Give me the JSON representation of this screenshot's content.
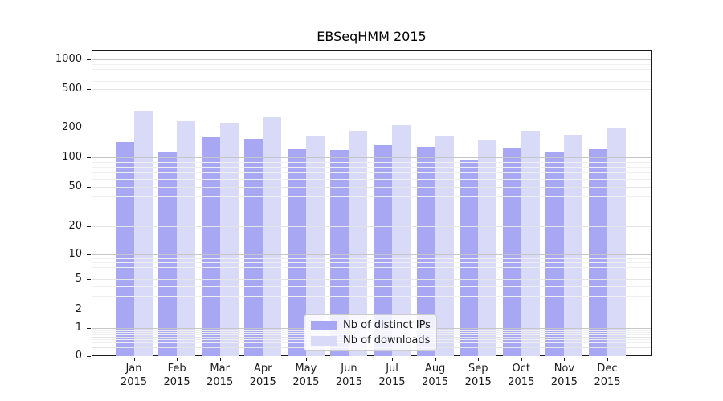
{
  "title": "EBSeqHMM 2015",
  "chart_data": {
    "type": "bar",
    "title": "EBSeqHMM 2015",
    "categories": [
      "Jan",
      "Feb",
      "Mar",
      "Apr",
      "May",
      "Jun",
      "Jul",
      "Aug",
      "Sep",
      "Oct",
      "Nov",
      "Dec"
    ],
    "year": "2015",
    "series": [
      {
        "name": "Nb of distinct IPs",
        "color": "#a7a7f3",
        "values": [
          143,
          114,
          161,
          155,
          121,
          119,
          133,
          128,
          93,
          125,
          115,
          121
        ]
      },
      {
        "name": "Nb of downloads",
        "color": "#d9d9f8",
        "values": [
          293,
          234,
          226,
          258,
          167,
          186,
          211,
          165,
          150,
          188,
          170,
          200
        ]
      }
    ],
    "xlabel": "",
    "ylabel": "",
    "y_axis": {
      "scale": "log-like",
      "tick_values": [
        1000,
        500,
        200,
        100,
        50,
        20,
        10,
        5,
        2,
        1,
        0
      ],
      "tick_labels": [
        "1000",
        "500",
        "200",
        "100",
        "50",
        "20",
        "10",
        "5",
        "2",
        "1",
        "0"
      ],
      "ylim": [
        0,
        1260
      ]
    },
    "grid": true,
    "legend": {
      "position": "inside-bottom-center",
      "entries": [
        "Nb of distinct IPs",
        "Nb of downloads"
      ]
    },
    "colors": {
      "grid_major": "#c6c6c6",
      "grid_mid": "#e4e4e4",
      "grid_minor": "#efefef",
      "axis": "#1a1a1a",
      "text": "#1a1a1a"
    }
  }
}
